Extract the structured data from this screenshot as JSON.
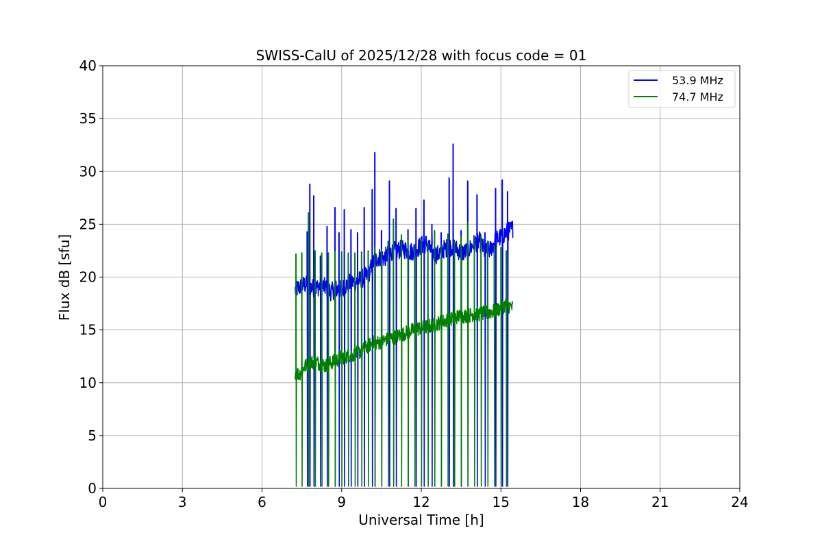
{
  "chart_data": {
    "type": "line",
    "title": "SWISS-CalU of 2025/12/28 with focus code = 01",
    "xlabel": "Universal Time [h]",
    "ylabel": "Flux dB [sfu]",
    "xlim": [
      0,
      24
    ],
    "ylim": [
      0,
      40
    ],
    "xticks": [
      "0",
      "3",
      "6",
      "9",
      "12",
      "15",
      "18",
      "21",
      "24"
    ],
    "yticks": [
      "0",
      "5",
      "10",
      "15",
      "20",
      "25",
      "30",
      "35",
      "40"
    ],
    "grid": true,
    "legend_position": "top-right",
    "series": [
      {
        "name": "53.9 MHz",
        "color": "#0000ff",
        "x": [
          7.25,
          7.4,
          7.6,
          7.8,
          8.0,
          8.2,
          8.4,
          8.6,
          8.8,
          9.0,
          9.2,
          9.4,
          9.6,
          9.8,
          10.0,
          10.2,
          10.4,
          10.6,
          10.8,
          11.0,
          11.2,
          11.4,
          11.6,
          11.8,
          12.0,
          12.2,
          12.4,
          12.6,
          12.8,
          13.0,
          13.2,
          13.4,
          13.6,
          13.8,
          14.0,
          14.2,
          14.4,
          14.6,
          14.8,
          15.0,
          15.2,
          15.45
        ],
        "y": [
          18.8,
          19.0,
          19.3,
          19.1,
          18.9,
          19.2,
          19.0,
          18.6,
          18.9,
          18.8,
          19.3,
          19.5,
          19.6,
          19.9,
          20.2,
          21.4,
          21.9,
          21.8,
          22.3,
          22.5,
          22.6,
          22.6,
          22.4,
          22.6,
          23.0,
          23.2,
          22.3,
          22.1,
          22.6,
          22.8,
          22.9,
          22.5,
          22.3,
          22.6,
          23.2,
          23.4,
          22.4,
          22.6,
          23.5,
          23.8,
          24.2,
          24.6
        ],
        "noise_band": 0.9,
        "spikes": [
          {
            "x": 7.7,
            "y": 24.3
          },
          {
            "x": 7.8,
            "y": 28.8
          },
          {
            "x": 7.95,
            "y": 27.7
          },
          {
            "x": 8.2,
            "y": 22.0
          },
          {
            "x": 8.45,
            "y": 24.8
          },
          {
            "x": 8.75,
            "y": 26.6
          },
          {
            "x": 8.9,
            "y": 24.2
          },
          {
            "x": 9.1,
            "y": 26.4
          },
          {
            "x": 9.35,
            "y": 24.5
          },
          {
            "x": 9.6,
            "y": 24.2
          },
          {
            "x": 9.85,
            "y": 26.6
          },
          {
            "x": 10.15,
            "y": 28.3
          },
          {
            "x": 10.25,
            "y": 31.8
          },
          {
            "x": 10.5,
            "y": 24.4
          },
          {
            "x": 10.8,
            "y": 29.1
          },
          {
            "x": 11.05,
            "y": 26.5
          },
          {
            "x": 11.5,
            "y": 24.5
          },
          {
            "x": 11.8,
            "y": 26.5
          },
          {
            "x": 12.1,
            "y": 27.3
          },
          {
            "x": 12.4,
            "y": 25.0
          },
          {
            "x": 12.75,
            "y": 24.2
          },
          {
            "x": 13.05,
            "y": 29.4
          },
          {
            "x": 13.2,
            "y": 32.6
          },
          {
            "x": 13.5,
            "y": 24.4
          },
          {
            "x": 13.75,
            "y": 29.1
          },
          {
            "x": 14.1,
            "y": 27.8
          },
          {
            "x": 14.4,
            "y": 24.2
          },
          {
            "x": 14.8,
            "y": 28.4
          },
          {
            "x": 15.05,
            "y": 29.2
          },
          {
            "x": 15.25,
            "y": 28.1
          }
        ]
      },
      {
        "name": "74.7 MHz",
        "color": "#008000",
        "x": [
          7.25,
          7.4,
          7.6,
          7.8,
          8.0,
          8.2,
          8.4,
          8.6,
          8.8,
          9.0,
          9.2,
          9.4,
          9.6,
          9.8,
          10.0,
          10.2,
          10.4,
          10.6,
          10.8,
          11.0,
          11.2,
          11.4,
          11.6,
          11.8,
          12.0,
          12.2,
          12.4,
          12.6,
          12.8,
          13.0,
          13.2,
          13.4,
          13.6,
          13.8,
          14.0,
          14.2,
          14.4,
          14.6,
          14.8,
          15.0,
          15.2,
          15.45
        ],
        "y": [
          11.0,
          10.8,
          11.5,
          11.9,
          12.0,
          11.8,
          11.6,
          11.9,
          12.1,
          12.4,
          12.5,
          12.6,
          12.8,
          13.1,
          13.5,
          13.8,
          13.8,
          14.0,
          14.2,
          14.3,
          14.5,
          14.7,
          14.9,
          15.1,
          15.2,
          15.3,
          15.4,
          15.6,
          15.8,
          15.9,
          16.1,
          16.3,
          16.3,
          16.4,
          16.5,
          16.5,
          16.6,
          16.7,
          16.8,
          17.1,
          17.4,
          17.1
        ],
        "noise_band": 0.7,
        "spikes": [
          {
            "x": 7.28,
            "y": 22.2
          },
          {
            "x": 7.5,
            "y": 22.3
          },
          {
            "x": 7.75,
            "y": 26.1
          },
          {
            "x": 8.0,
            "y": 22.5
          },
          {
            "x": 8.25,
            "y": 22.3
          },
          {
            "x": 8.5,
            "y": 22.3
          },
          {
            "x": 8.75,
            "y": 22.4
          },
          {
            "x": 9.0,
            "y": 22.4
          },
          {
            "x": 9.25,
            "y": 22.3
          },
          {
            "x": 9.5,
            "y": 22.3
          },
          {
            "x": 9.75,
            "y": 22.4
          },
          {
            "x": 10.0,
            "y": 22.5
          },
          {
            "x": 10.25,
            "y": 22.8
          },
          {
            "x": 10.5,
            "y": 22.6
          },
          {
            "x": 10.75,
            "y": 23.4
          },
          {
            "x": 10.95,
            "y": 25.5
          },
          {
            "x": 11.25,
            "y": 24.0
          },
          {
            "x": 11.5,
            "y": 23.5
          },
          {
            "x": 11.75,
            "y": 22.9
          },
          {
            "x": 12.0,
            "y": 23.6
          },
          {
            "x": 12.25,
            "y": 23.2
          },
          {
            "x": 12.5,
            "y": 24.4
          },
          {
            "x": 12.75,
            "y": 23.0
          },
          {
            "x": 13.0,
            "y": 24.1
          },
          {
            "x": 13.25,
            "y": 23.4
          },
          {
            "x": 13.5,
            "y": 23.8
          },
          {
            "x": 13.75,
            "y": 25.2
          },
          {
            "x": 14.0,
            "y": 23.8
          },
          {
            "x": 14.25,
            "y": 23.9
          },
          {
            "x": 14.5,
            "y": 23.4
          },
          {
            "x": 14.75,
            "y": 23.0
          },
          {
            "x": 15.0,
            "y": 22.8
          },
          {
            "x": 15.2,
            "y": 22.5
          }
        ]
      }
    ]
  }
}
